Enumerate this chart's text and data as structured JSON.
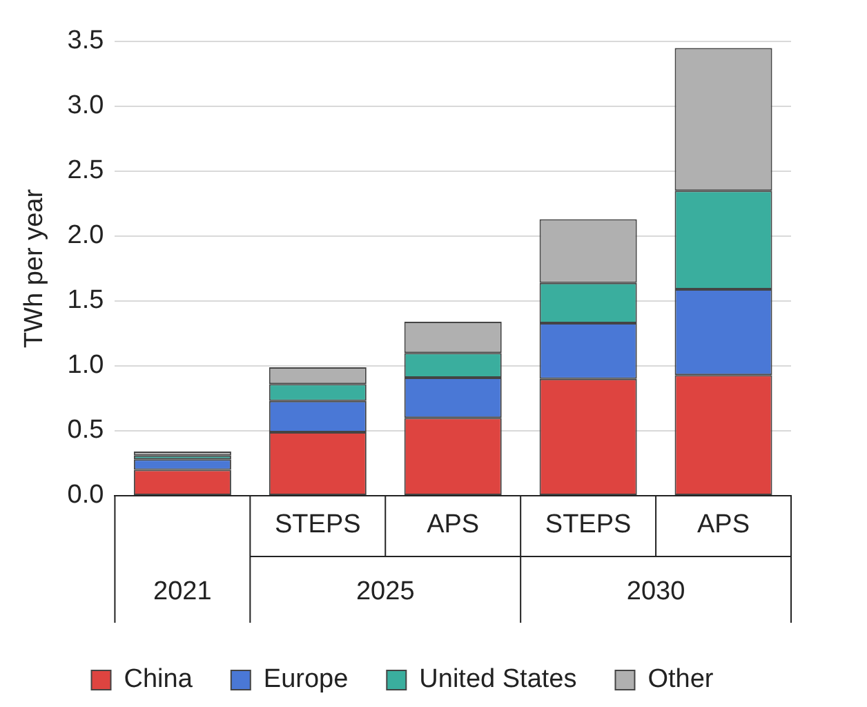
{
  "chart_data": {
    "type": "bar",
    "stacked": true,
    "ylabel": "TWh per year",
    "categories": [
      null,
      "STEPS",
      "APS",
      "STEPS",
      "APS"
    ],
    "annotations": [
      "2021",
      "2025",
      "2030"
    ],
    "series": [
      {
        "name": "China",
        "color": "#de4440",
        "values": [
          0.2,
          0.49,
          0.6,
          0.9,
          0.93
        ]
      },
      {
        "name": "Europe",
        "color": "#4a78d6",
        "values": [
          0.08,
          0.24,
          0.31,
          0.43,
          0.66
        ]
      },
      {
        "name": "United States",
        "color": "#3aae9e",
        "values": [
          0.03,
          0.13,
          0.19,
          0.31,
          0.76
        ]
      },
      {
        "name": "Other",
        "color": "#b0b0b0",
        "values": [
          0.03,
          0.13,
          0.24,
          0.49,
          1.1
        ]
      }
    ],
    "ylim": [
      0,
      3.5
    ],
    "yticks": [
      {
        "value": 0,
        "label": "0.0"
      },
      0.5,
      {
        "value": 1,
        "label": "1.0"
      },
      1.5,
      {
        "value": 2,
        "label": "2.0"
      },
      2.5,
      {
        "value": 3,
        "label": "3.0"
      },
      3.5
    ],
    "grid": "y",
    "legend": "bottom"
  }
}
